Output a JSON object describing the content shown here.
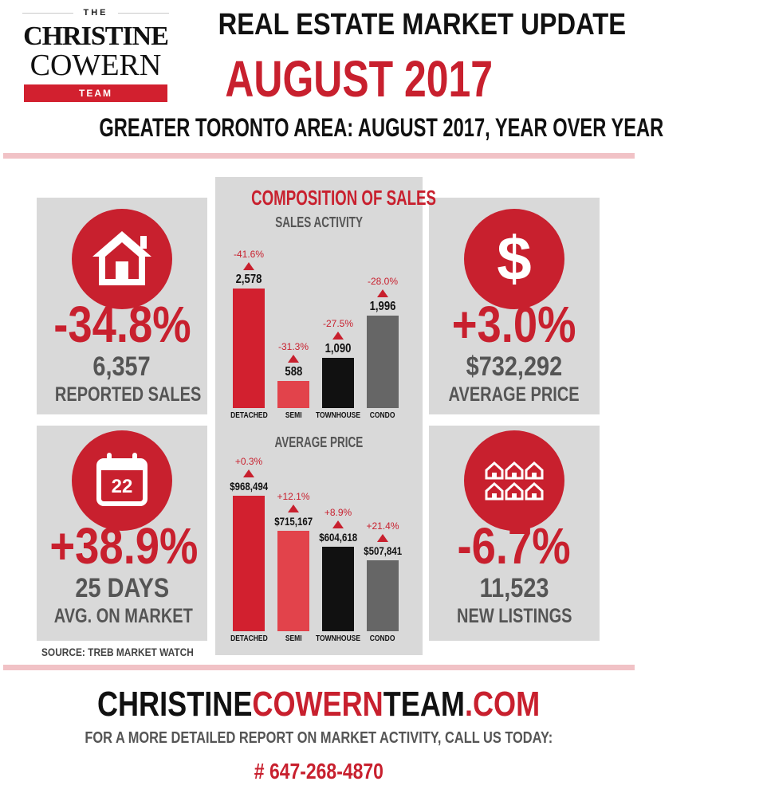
{
  "logo": {
    "the": "THE",
    "first": "CHRISTINE",
    "last": "COWERN",
    "team": "TEAM"
  },
  "header": {
    "title": "REAL ESTATE MARKET UPDATE",
    "month": "AUGUST 2017",
    "subtitle": "GREATER TORONTO AREA: AUGUST 2017, YEAR OVER YEAR"
  },
  "stats": {
    "sales": {
      "icon": "house-icon",
      "change": "-34.8%",
      "value": "6,357",
      "label": "REPORTED SALES"
    },
    "days": {
      "icon": "calendar-icon",
      "calendar_day": "22",
      "change": "+38.9%",
      "value": "25 DAYS",
      "label": "AVG. ON MARKET"
    },
    "price": {
      "icon": "dollar-icon",
      "symbol": "$",
      "change": "+3.0%",
      "value": "$732,292",
      "label": "AVERAGE PRICE"
    },
    "listings": {
      "icon": "houses-icon",
      "change": "-6.7%",
      "value": "11,523",
      "label": "NEW LISTINGS"
    }
  },
  "composition": {
    "title": "COMPOSITION OF SALES"
  },
  "chart_data": [
    {
      "type": "bar",
      "title": "SALES ACTIVITY",
      "categories": [
        "DETACHED",
        "SEMI",
        "TOWNHOUSE",
        "CONDO"
      ],
      "values": [
        2578,
        588,
        1090,
        1996
      ],
      "value_labels": [
        "2,578",
        "588",
        "1,090",
        "1,996"
      ],
      "changes": [
        "-41.6%",
        "-31.3%",
        "-27.5%",
        "-28.0%"
      ],
      "colors": [
        "#d2202f",
        "#e2434b",
        "#111111",
        "#666666"
      ]
    },
    {
      "type": "bar",
      "title": "AVERAGE PRICE",
      "categories": [
        "DETACHED",
        "SEMI",
        "TOWNHOUSE",
        "CONDO"
      ],
      "values": [
        968494,
        715167,
        604618,
        507841
      ],
      "value_labels": [
        "$968,494",
        "$715,167",
        "$604,618",
        "$507,841"
      ],
      "changes": [
        "+0.3%",
        "+12.1%",
        "+8.9%",
        "+21.4%"
      ],
      "colors": [
        "#d2202f",
        "#e2434b",
        "#111111",
        "#666666"
      ]
    }
  ],
  "source": "SOURCE: TREB MARKET WATCH",
  "footer": {
    "site_part1": "CHRISTINE",
    "site_part2": "COWERN",
    "site_part3": "TEAM",
    "site_part4": ".COM",
    "cta": "FOR A MORE DETAILED REPORT ON MARKET ACTIVITY, CALL US TODAY:",
    "phone": "# 647-268-4870"
  },
  "colors": {
    "accent": "#c8202e",
    "panel": "#d9d9d9",
    "divider": "#f1c2c6"
  }
}
